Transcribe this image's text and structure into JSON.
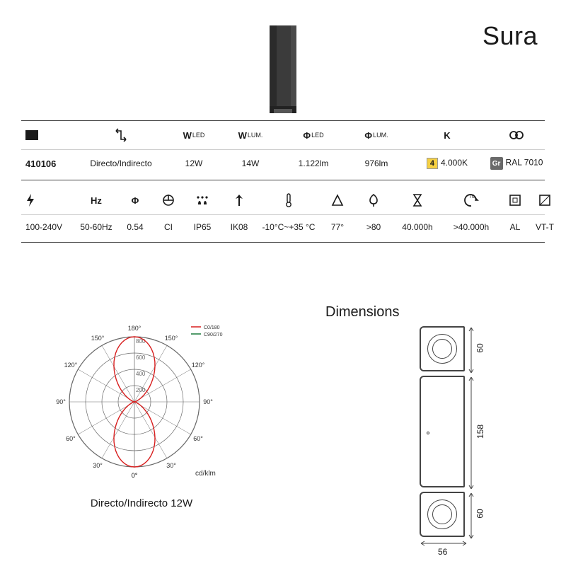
{
  "title": "Sura",
  "product_image": {
    "body_color": "#3b3b3b",
    "width": 44,
    "height": 130
  },
  "row1": {
    "headers": [
      {
        "type": "color-swatch",
        "color": "#1a1a1a"
      },
      {
        "type": "icon",
        "name": "direction-icon"
      },
      {
        "type": "text",
        "bold": "W",
        "sub": "LED"
      },
      {
        "type": "text",
        "bold": "W",
        "sub": "LUM."
      },
      {
        "type": "text",
        "bold": "Φ",
        "sub": "LED"
      },
      {
        "type": "text",
        "bold": "Φ",
        "sub": "LUM."
      },
      {
        "type": "text",
        "bold": "K"
      },
      {
        "type": "icon",
        "name": "rings-icon"
      }
    ],
    "values": {
      "code": "410106",
      "distribution": "Directo/Indirecto",
      "w_led": "12W",
      "w_lum": "14W",
      "phi_led": "1.122lm",
      "phi_lum": "976lm",
      "cct_badge": "4",
      "cct": "4.000K",
      "finish_badge": "Gr",
      "finish": "RAL 7010"
    }
  },
  "row2": {
    "headers": [
      {
        "name": "bolt-icon"
      },
      {
        "name": "hz-text",
        "text": "Hz"
      },
      {
        "name": "pf-icon",
        "text": "Φ"
      },
      {
        "name": "class-icon"
      },
      {
        "name": "ip-icon"
      },
      {
        "name": "ik-icon"
      },
      {
        "name": "temp-icon"
      },
      {
        "name": "beam-icon"
      },
      {
        "name": "cri-icon"
      },
      {
        "name": "hourglass-icon"
      },
      {
        "name": "l70-icon"
      },
      {
        "name": "body-icon"
      },
      {
        "name": "diffuser-icon"
      }
    ],
    "values": {
      "voltage": "100-240V",
      "freq": "50-60Hz",
      "pf": "0.54",
      "class": "CI",
      "ip": "IP65",
      "ik": "IK08",
      "temp": "-10°C~+35 °C",
      "beam": "77°",
      "cri": ">80",
      "life": "40.000h",
      "l70": ">40.000h",
      "body": "AL",
      "diffuser": "VT-T"
    }
  },
  "polar": {
    "caption": "Directo/Indirecto 12W",
    "unit": "cd/klm",
    "legend": [
      "C0/180",
      "C90/270"
    ],
    "legend_colors": [
      "#d81e1e",
      "#1a7a3a"
    ],
    "rings": [
      200,
      400,
      600,
      800
    ],
    "angles_deg": [
      0,
      30,
      60,
      90,
      120,
      150,
      180
    ],
    "curve_color": "#d81e1e",
    "axis_color": "#6a6a6a",
    "lobe_peak_cd_klm": 800,
    "lobe_half_angle_deg": 40
  },
  "dimensions": {
    "title": "Dimensions",
    "top_h": "60",
    "mid_h": "158",
    "bot_h": "60",
    "width": "56"
  },
  "colors": {
    "text": "#1a1a1a",
    "rule": "#444444",
    "rule_light": "#cccccc",
    "bg": "#ffffff"
  }
}
